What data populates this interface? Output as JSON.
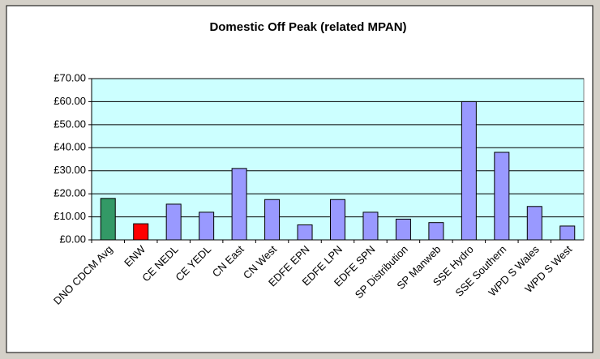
{
  "chart_data": {
    "type": "bar",
    "title": "Domestic Off Peak (related MPAN)",
    "categories": [
      "DNO CDCM Avg",
      "ENW",
      "CE NEDL",
      "CE YEDL",
      "CN East",
      "CN West",
      "EDFE EPN",
      "EDFE LPN",
      "EDFE SPN",
      "SP Distribution",
      "SP Manweb",
      "SSE Hydro",
      "SSE Southern",
      "WPD S Wales",
      "WPD S West"
    ],
    "values": [
      18,
      7,
      15.5,
      12,
      31,
      17.5,
      6.5,
      17.5,
      12,
      9,
      7.5,
      60,
      38,
      14.5,
      6
    ],
    "colors": [
      "#339966",
      "#ff0000",
      "#9999ff",
      "#9999ff",
      "#9999ff",
      "#9999ff",
      "#9999ff",
      "#9999ff",
      "#9999ff",
      "#9999ff",
      "#9999ff",
      "#9999ff",
      "#9999ff",
      "#9999ff",
      "#9999ff"
    ],
    "ylim": [
      0,
      70
    ],
    "yticks": [
      {
        "value": 0,
        "label": "£0.00"
      },
      {
        "value": 10,
        "label": "£10.00"
      },
      {
        "value": 20,
        "label": "£20.00"
      },
      {
        "value": 30,
        "label": "£30.00"
      },
      {
        "value": 40,
        "label": "£40.00"
      },
      {
        "value": 50,
        "label": "£50.00"
      },
      {
        "value": 60,
        "label": "£60.00"
      },
      {
        "value": 70,
        "label": "£70.00"
      }
    ],
    "grid": true
  }
}
